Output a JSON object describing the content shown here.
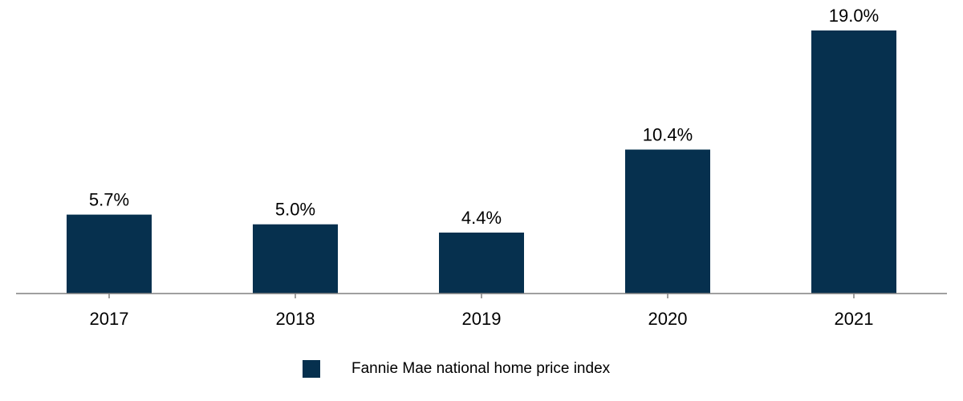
{
  "chart_data": {
    "type": "bar",
    "categories": [
      "2017",
      "2018",
      "2019",
      "2020",
      "2021"
    ],
    "series": [
      {
        "name": "Fannie Mae national home price index",
        "values": [
          5.7,
          5.0,
          4.4,
          10.4,
          19.0
        ],
        "labels": [
          "5.7%",
          "5.0%",
          "4.4%",
          "10.4%",
          "19.0%"
        ],
        "color": "#06304e"
      }
    ],
    "title": "",
    "xlabel": "",
    "ylabel": "",
    "ylim": [
      0,
      19.0
    ],
    "grid": false,
    "legend_position": "bottom-center",
    "axis_color": "#808080"
  }
}
